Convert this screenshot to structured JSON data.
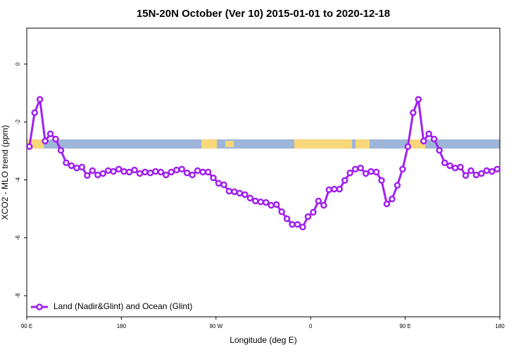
{
  "chart_data": {
    "type": "line",
    "title": "15N-20N October (Ver 10)   2015-01-01 to 2020-12-18",
    "xlabel": "Longitude (deg E)",
    "ylabel": "XCO2 - MLO trend (ppm)",
    "xlim": [
      90,
      540
    ],
    "ylim": [
      -8.73,
      1.24
    ],
    "xticks": [
      {
        "value": 90,
        "label": "90 E"
      },
      180,
      {
        "value": 270,
        "label": "90 W"
      },
      {
        "value": 360,
        "label": "0"
      },
      {
        "value": 450,
        "label": "90 E"
      },
      {
        "value": 540,
        "label": "180"
      }
    ],
    "yticks": [
      0,
      -2,
      -4,
      -6,
      -8
    ],
    "legend": "bottomleft",
    "series": [
      {
        "name": "Land (Nadir&Glint) and Ocean (Glint)",
        "color": "#a020f0",
        "x": [
          92.5,
          97.5,
          102.5,
          107.5,
          112.5,
          117.5,
          122.5,
          127.5,
          132.5,
          137.5,
          142.5,
          147.5,
          152.5,
          157.5,
          162.5,
          167.5,
          172.5,
          177.5,
          182.5,
          187.5,
          192.5,
          197.5,
          202.5,
          207.5,
          212.5,
          217.5,
          222.5,
          227.5,
          232.5,
          237.5,
          242.5,
          247.5,
          252.5,
          257.5,
          262.5,
          267.5,
          272.5,
          277.5,
          282.5,
          287.5,
          292.5,
          297.5,
          302.5,
          307.5,
          312.5,
          317.5,
          322.5,
          327.5,
          332.5,
          337.5,
          342.5,
          347.5,
          352.5,
          357.5,
          362.5,
          367.5,
          372.5,
          377.5,
          382.5,
          387.5,
          392.5,
          397.5,
          402.5,
          407.5,
          412.5,
          417.5,
          422.5,
          427.5,
          432.5,
          437.5,
          442.5,
          447.5,
          452.5,
          457.5,
          462.5,
          467.5,
          472.5,
          477.5,
          482.5,
          487.5,
          492.5,
          497.5,
          502.5,
          507.5,
          512.5,
          517.5,
          522.5,
          527.5,
          532.5,
          537.5
        ],
        "values": [
          -2.85,
          -1.68,
          -1.22,
          -2.66,
          -2.41,
          -2.59,
          -2.98,
          -3.41,
          -3.51,
          -3.59,
          -3.56,
          -3.85,
          -3.68,
          -3.83,
          -3.78,
          -3.68,
          -3.71,
          -3.63,
          -3.71,
          -3.73,
          -3.66,
          -3.78,
          -3.73,
          -3.76,
          -3.71,
          -3.73,
          -3.83,
          -3.73,
          -3.66,
          -3.63,
          -3.76,
          -3.83,
          -3.68,
          -3.73,
          -3.73,
          -3.93,
          -4.12,
          -4.17,
          -4.39,
          -4.41,
          -4.46,
          -4.51,
          -4.63,
          -4.73,
          -4.76,
          -4.78,
          -4.88,
          -4.85,
          -5.1,
          -5.34,
          -5.54,
          -5.54,
          -5.63,
          -5.27,
          -5.12,
          -4.73,
          -4.88,
          -4.34,
          -4.32,
          -4.32,
          -4.02,
          -3.76,
          -3.63,
          -3.59,
          -3.78,
          -3.71,
          -3.73,
          -4.02,
          -4.83,
          -4.66,
          -4.19,
          -3.63,
          -2.85,
          -1.68,
          -1.22,
          -2.66,
          -2.41,
          -2.59,
          -2.98,
          -3.41,
          -3.51,
          -3.59,
          -3.56,
          -3.85,
          -3.68,
          -3.83,
          -3.78,
          -3.68,
          -3.71,
          -3.63
        ]
      }
    ]
  }
}
